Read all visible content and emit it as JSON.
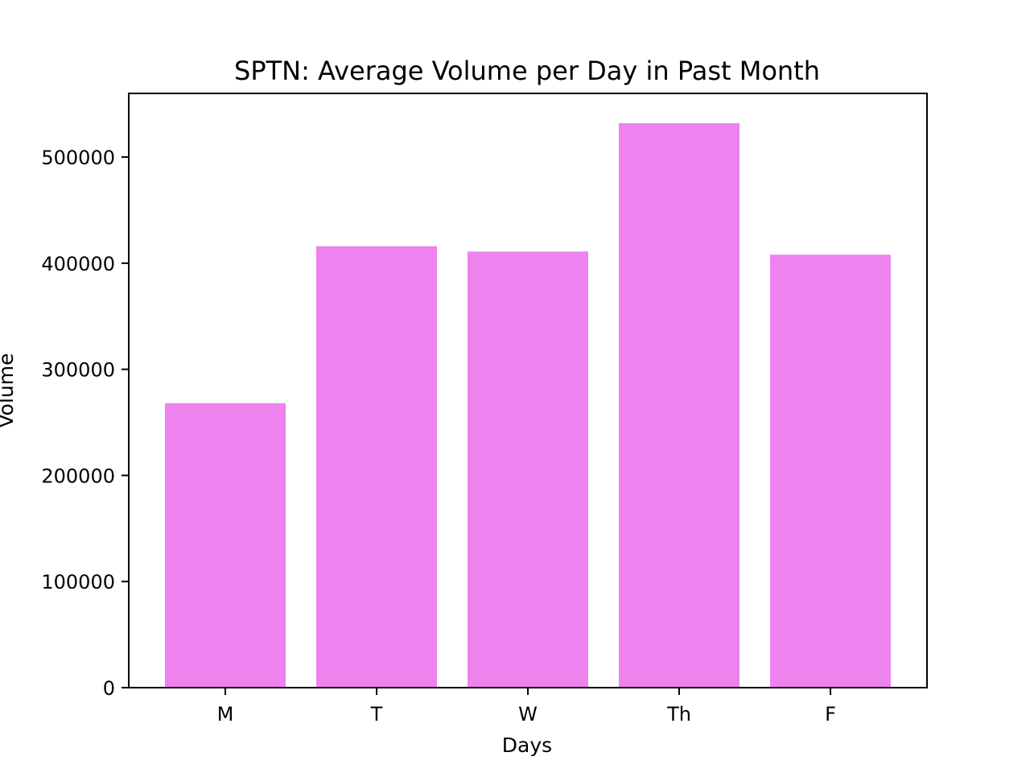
{
  "chart_data": {
    "type": "bar",
    "title": "SPTN: Average Volume per Day in Past Month",
    "xlabel": "Days",
    "ylabel": "Volume",
    "categories": [
      "M",
      "T",
      "W",
      "Th",
      "F"
    ],
    "values": [
      268000,
      416000,
      411000,
      532000,
      408000
    ],
    "ylim": [
      0,
      560000
    ],
    "yticks": [
      0,
      100000,
      200000,
      300000,
      400000,
      500000
    ],
    "ytick_labels": [
      "0",
      "100000",
      "200000",
      "300000",
      "400000",
      "500000"
    ],
    "grid": false,
    "legend": "none",
    "colors": {
      "bar": "#ee82ee",
      "axes": "#000000",
      "background": "#ffffff"
    }
  }
}
